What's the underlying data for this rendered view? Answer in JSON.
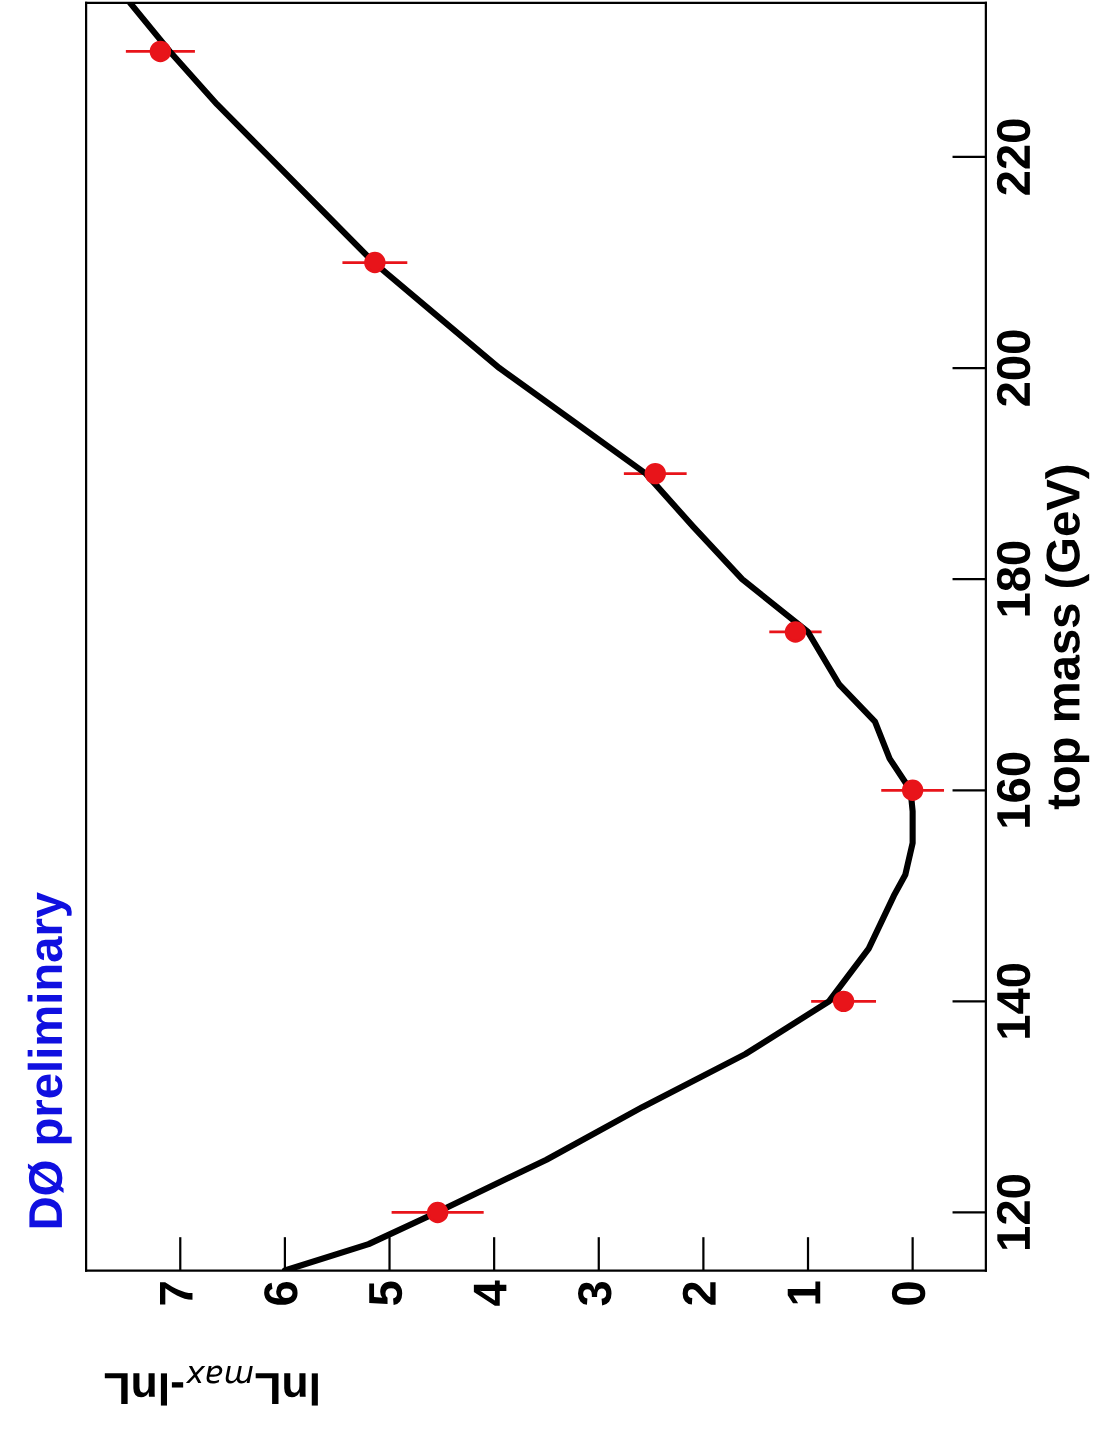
{
  "chart_data": {
    "type": "scatter",
    "xlabel": "lnL$_{max}$-lnL",
    "ylabel": "top mass (GeV)",
    "annotations": [
      "DØ preliminary"
    ],
    "xlim": [
      7.9,
      -0.7
    ],
    "ylim": [
      114.5,
      234.6
    ],
    "xticks": [
      0,
      1,
      2,
      3,
      4,
      5,
      6,
      7
    ],
    "yticks": [
      120,
      140,
      160,
      180,
      200,
      220
    ],
    "grid": false,
    "legend": false,
    "series": [
      {
        "color": "#e8141a",
        "marker": "circle",
        "x": [
          4.54,
          0.66,
          0,
          1.12,
          2.46,
          5.14,
          7.19
        ],
        "values": [
          120,
          140,
          160,
          175,
          190,
          210,
          230
        ],
        "xerrors": [
          0.44,
          0.31,
          0.3,
          0.25,
          0.3,
          0.31,
          0.33
        ]
      },
      {
        "type": "line",
        "color": "#000000",
        "marker": "none",
        "line_style": "solid",
        "x": [
          6.0,
          5.2,
          4.55,
          3.5,
          2.58,
          1.6,
          0.8,
          0.42,
          0.18,
          0.07,
          0,
          0.0,
          0.02,
          0.22,
          0.36,
          0.7,
          1.0,
          1.63,
          2.1,
          2.55,
          3.25,
          3.95,
          4.55,
          5.15,
          5.65,
          6.15,
          6.65,
          7.1,
          7.48
        ],
        "values": [
          114.5,
          117,
          120,
          125,
          130,
          135,
          140,
          145,
          150,
          152,
          155,
          158,
          160,
          163,
          166.5,
          170,
          175,
          180,
          185,
          190,
          195,
          200,
          205,
          210,
          215,
          220,
          225,
          230,
          234.6
        ]
      }
    ]
  }
}
